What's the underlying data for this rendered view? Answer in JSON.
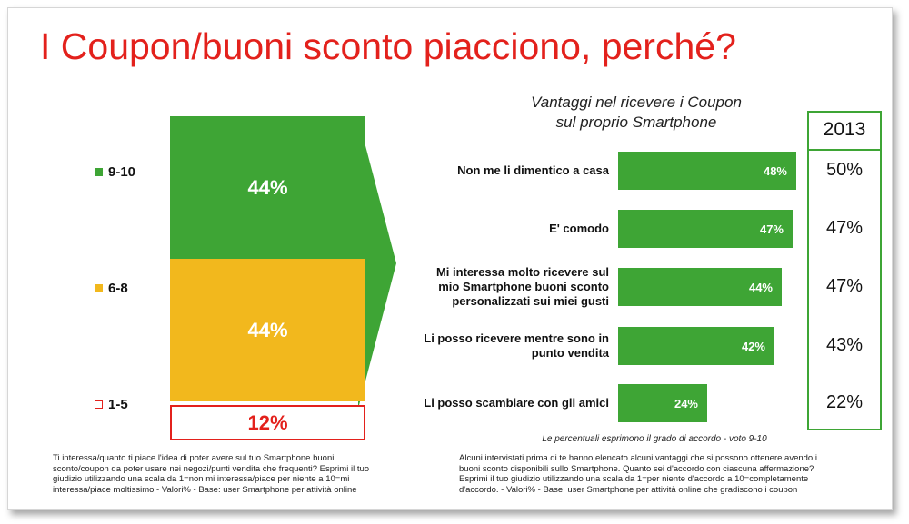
{
  "title": "I Coupon/buoni sconto piacciono, perché?",
  "colors": {
    "title": "#e3211c",
    "green": "#3ea535",
    "yellow": "#f2b81d",
    "red": "#e3211c"
  },
  "left_chart": {
    "legend": [
      {
        "label": "9-10",
        "color": "#3ea535"
      },
      {
        "label": "6-8",
        "color": "#f2b81d"
      },
      {
        "label": "1-5",
        "color": "#ffffff"
      }
    ],
    "segments": [
      {
        "label": "9-10",
        "value": 44,
        "text": "44%"
      },
      {
        "label": "6-8",
        "value": 44,
        "text": "44%"
      },
      {
        "label": "1-5",
        "value": 12,
        "text": "12%"
      }
    ]
  },
  "right_chart": {
    "subtitle_line1": "Vantaggi nel ricevere i Coupon",
    "subtitle_line2": "sul proprio Smartphone",
    "year_header": "2013",
    "note": "Le percentuali esprimono il grado di accordo - voto 9-10"
  },
  "chart_data": [
    {
      "type": "bar",
      "stacked": true,
      "categories": [
        "9-10",
        "6-8",
        "1-5"
      ],
      "values": [
        44,
        44,
        12
      ],
      "unit": "%"
    },
    {
      "type": "bar",
      "orientation": "horizontal",
      "categories": [
        "Non me li dimentico a casa",
        "E' comodo",
        "Mi interessa molto ricevere sul mio Smartphone buoni sconto personalizzati sui miei gusti",
        "Li posso ricevere mentre sono in punto vendita",
        "Li posso scambiare con gli amici"
      ],
      "values": [
        48,
        47,
        44,
        42,
        24
      ],
      "labels": [
        "48%",
        "47%",
        "44%",
        "42%",
        "24%"
      ],
      "comparison_2013": [
        "50%",
        "47%",
        "47%",
        "43%",
        "22%"
      ],
      "unit": "%"
    }
  ],
  "bar_items": [
    {
      "lines": [
        "Non me li dimentico a casa"
      ],
      "value": 48,
      "label": "48%",
      "y2013": "50%"
    },
    {
      "lines": [
        "E' comodo"
      ],
      "value": 47,
      "label": "47%",
      "y2013": "47%"
    },
    {
      "lines": [
        "Mi interessa molto ricevere sul",
        "mio Smartphone buoni sconto",
        "personalizzati sui miei gusti"
      ],
      "value": 44,
      "label": "44%",
      "y2013": "47%"
    },
    {
      "lines": [
        "Li posso ricevere mentre sono in",
        "punto vendita"
      ],
      "value": 42,
      "label": "42%",
      "y2013": "43%"
    },
    {
      "lines": [
        "Li posso scambiare con gli amici"
      ],
      "value": 24,
      "label": "24%",
      "y2013": "22%"
    }
  ],
  "footnote_left": [
    "Ti interessa/quanto ti piace l'idea di poter avere sul tuo Smartphone buoni",
    "sconto/coupon da poter usare nei negozi/punti vendita che frequenti? Esprimi il tuo",
    "giudizio utilizzando una scala da 1=non mi interessa/piace per niente a 10=mi",
    "interessa/piace moltissimo - Valori% - Base: user Smartphone per attività online"
  ],
  "footnote_right": [
    "Alcuni intervistati prima di te hanno elencato alcuni vantaggi che si possono ottenere avendo i",
    "buoni sconto disponibili sullo Smartphone. Quanto sei d'accordo con ciascuna affermazione?",
    "Esprimi il tuo giudizio utilizzando una scala da 1=per niente d'accordo a 10=completamente",
    "d'accordo. - Valori% - Base: user Smartphone per attività online che gradiscono i coupon"
  ]
}
